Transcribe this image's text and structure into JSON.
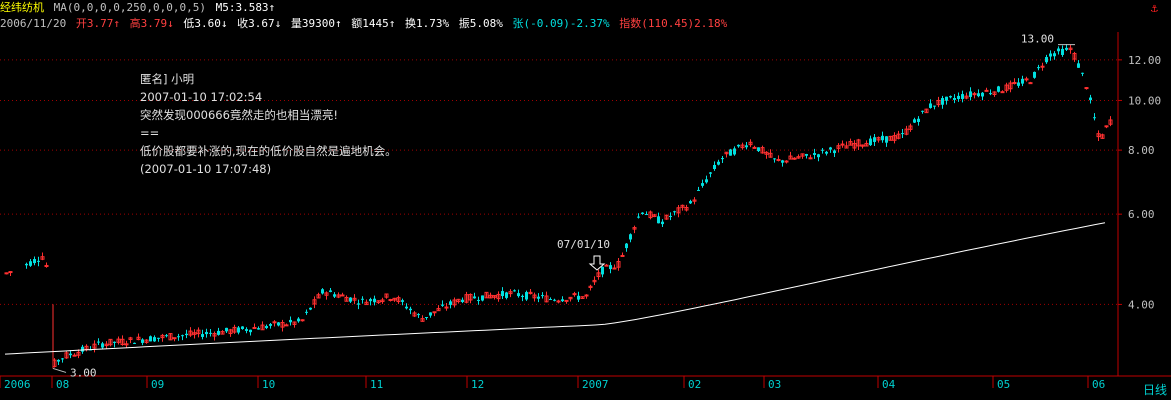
{
  "header": {
    "stock_name": "经纬纺机",
    "ma_label": "MA(0,0,0,0,250,0,0,0,5)",
    "m5": "M5:3.583↑"
  },
  "info": {
    "date": "2006/11/20",
    "open": "开3.77↑",
    "high": "高3.79↓",
    "low": "低3.60↓",
    "close": "收3.67↓",
    "volume": "量39300↑",
    "amount": "额1445↑",
    "turnover": "换1.73%",
    "amplitude": "振5.08%",
    "change": "张(-0.09)-2.37%",
    "index": "指数(110.45)2.18%"
  },
  "annotation": {
    "line1": "匿名] 小明",
    "line2": "2007-01-10 17:02:54",
    "line3": "突然发现000666竟然走的也相当漂亮!",
    "line4": "==",
    "line5": "低价股都要补涨的,现在的低价股自然是遍地机会。",
    "line6": "(2007-01-10 17:07:48)"
  },
  "labels": {
    "max_price": "13.00",
    "min_price": "3.00",
    "marker_date": "07/01/10",
    "period": "日线"
  },
  "chart_data": {
    "type": "candlestick",
    "scale": "log",
    "ylim": [
      2.9,
      13.6
    ],
    "y_ticks": [
      "12.00",
      "10.00",
      "8.00",
      "6.00",
      "4.00"
    ],
    "y_tick_values": [
      12,
      10,
      8,
      6,
      4
    ],
    "x_ticks": [
      "2006",
      "08",
      "09",
      "10",
      "11",
      "12",
      "2007",
      "02",
      "03",
      "04",
      "05",
      "06"
    ],
    "colors": {
      "up": "#ff3030",
      "down": "#00e0e0",
      "ma": "#ffffff",
      "grid": "#a00000",
      "axis": "#c00000"
    }
  }
}
